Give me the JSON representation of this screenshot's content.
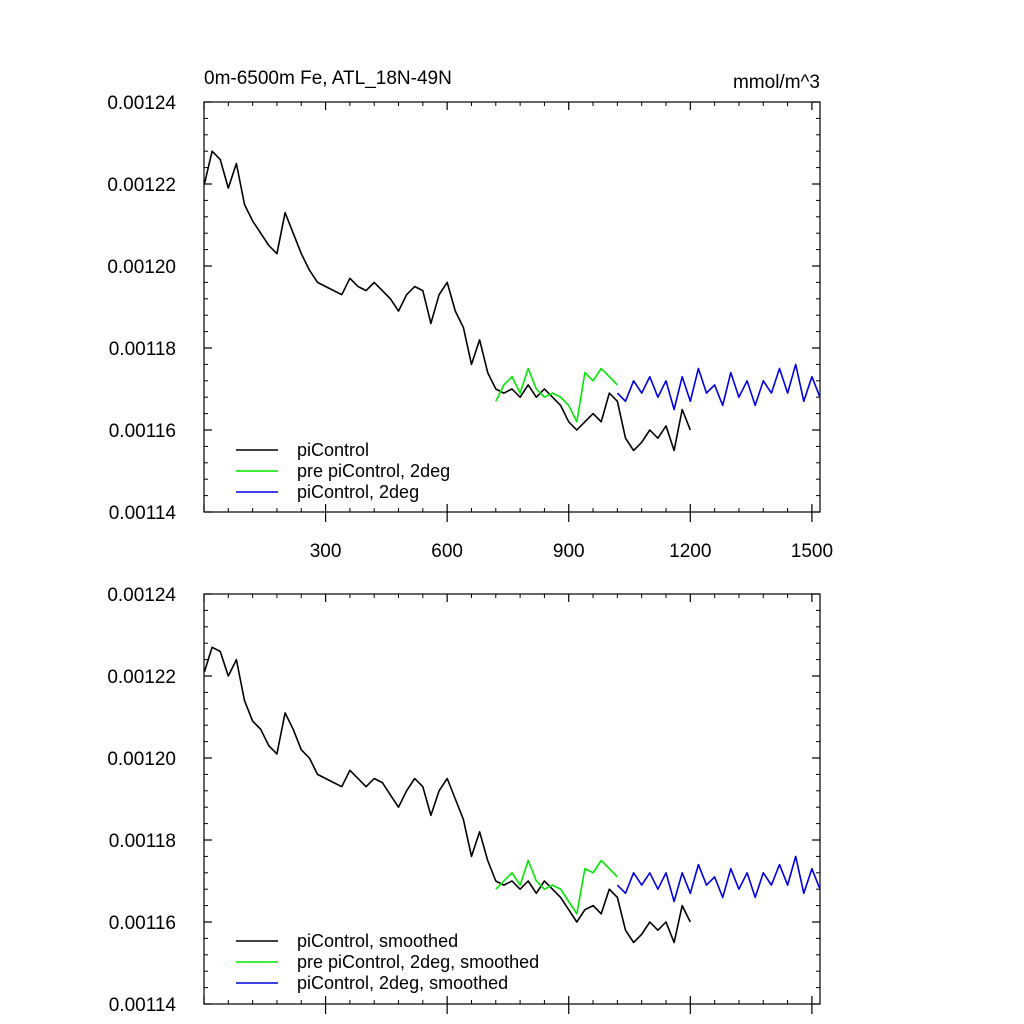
{
  "chart_data": [
    {
      "type": "line",
      "title": "0m-6500m Fe, ATL_18N-49N",
      "units": "mmol/m^3",
      "xlabel": "",
      "ylabel": "",
      "xlim": [
        0,
        1520
      ],
      "ylim": [
        0.00114,
        0.00124
      ],
      "xticks": [
        300,
        600,
        900,
        1200,
        1500
      ],
      "xticklabels": [
        "300",
        "600",
        "900",
        "1200",
        "1500"
      ],
      "yticks": [
        0.00114,
        0.00116,
        0.00118,
        0.0012,
        0.00122,
        0.00124
      ],
      "yticklabels": [
        "0.00114",
        "0.00116",
        "0.00118",
        "0.00120",
        "0.00122",
        "0.00124"
      ],
      "legend_position": "bottom-left",
      "grid": false,
      "series": [
        {
          "name": "piControl",
          "color": "#000000",
          "x": [
            1,
            20,
            40,
            60,
            80,
            100,
            120,
            140,
            160,
            180,
            200,
            220,
            240,
            260,
            280,
            300,
            320,
            340,
            360,
            380,
            400,
            420,
            440,
            460,
            480,
            500,
            520,
            540,
            560,
            580,
            600,
            620,
            640,
            660,
            680,
            700,
            720,
            740,
            760,
            780,
            800,
            820,
            840,
            860,
            880,
            900,
            920,
            940,
            960,
            980,
            1000,
            1020,
            1040,
            1060,
            1080,
            1100,
            1120,
            1140,
            1160,
            1180,
            1200
          ],
          "y": [
            0.00122,
            0.001228,
            0.001226,
            0.001219,
            0.001225,
            0.001215,
            0.001211,
            0.001208,
            0.001205,
            0.001203,
            0.001213,
            0.001208,
            0.001203,
            0.001199,
            0.001196,
            0.001195,
            0.001194,
            0.001193,
            0.001197,
            0.001195,
            0.001194,
            0.001196,
            0.001194,
            0.001192,
            0.001189,
            0.001193,
            0.001195,
            0.001194,
            0.001186,
            0.001193,
            0.001196,
            0.001189,
            0.001185,
            0.001176,
            0.001182,
            0.001174,
            0.00117,
            0.001169,
            0.00117,
            0.001168,
            0.001171,
            0.001168,
            0.00117,
            0.001168,
            0.001166,
            0.001162,
            0.00116,
            0.001162,
            0.001164,
            0.001162,
            0.001169,
            0.001167,
            0.001158,
            0.001155,
            0.001157,
            0.00116,
            0.001158,
            0.001161,
            0.001155,
            0.001165,
            0.00116
          ]
        },
        {
          "name": "pre piControl, 2deg",
          "color": "#00e800",
          "x": [
            720,
            740,
            760,
            780,
            800,
            820,
            840,
            860,
            880,
            900,
            920,
            940,
            960,
            980,
            1000,
            1020
          ],
          "y": [
            0.001167,
            0.001171,
            0.001173,
            0.001169,
            0.001175,
            0.00117,
            0.001168,
            0.001169,
            0.001168,
            0.001166,
            0.001162,
            0.001174,
            0.001172,
            0.001175,
            0.001173,
            0.001171
          ]
        },
        {
          "name": "piControl, 2deg",
          "color": "#0000e0",
          "x": [
            1020,
            1040,
            1060,
            1080,
            1100,
            1120,
            1140,
            1160,
            1180,
            1200,
            1220,
            1240,
            1260,
            1280,
            1300,
            1320,
            1340,
            1360,
            1380,
            1400,
            1420,
            1440,
            1460,
            1480,
            1500,
            1520
          ],
          "y": [
            0.001169,
            0.001167,
            0.001172,
            0.001169,
            0.001173,
            0.001168,
            0.001172,
            0.001165,
            0.001173,
            0.001167,
            0.001175,
            0.001169,
            0.001171,
            0.001166,
            0.001174,
            0.001168,
            0.001172,
            0.001166,
            0.001172,
            0.001169,
            0.001175,
            0.001169,
            0.001176,
            0.001167,
            0.001173,
            0.001168
          ]
        }
      ]
    },
    {
      "type": "line",
      "title": "",
      "xlabel": "",
      "ylabel": "",
      "xlim": [
        0,
        1520
      ],
      "ylim": [
        0.00114,
        0.00124
      ],
      "xticks": [
        300,
        600,
        900,
        1200,
        1500
      ],
      "xticklabels": [],
      "yticks": [
        0.00114,
        0.00116,
        0.00118,
        0.0012,
        0.00122,
        0.00124
      ],
      "yticklabels": [
        "0.00114",
        "0.00116",
        "0.00118",
        "0.00120",
        "0.00122",
        "0.00124"
      ],
      "legend_position": "bottom-left",
      "grid": false,
      "series": [
        {
          "name": "piControl, smoothed",
          "color": "#000000",
          "x": [
            1,
            20,
            40,
            60,
            80,
            100,
            120,
            140,
            160,
            180,
            200,
            220,
            240,
            260,
            280,
            300,
            320,
            340,
            360,
            380,
            400,
            420,
            440,
            460,
            480,
            500,
            520,
            540,
            560,
            580,
            600,
            620,
            640,
            660,
            680,
            700,
            720,
            740,
            760,
            780,
            800,
            820,
            840,
            860,
            880,
            900,
            920,
            940,
            960,
            980,
            1000,
            1020,
            1040,
            1060,
            1080,
            1100,
            1120,
            1140,
            1160,
            1180,
            1200
          ],
          "y": [
            0.001221,
            0.001227,
            0.001226,
            0.00122,
            0.001224,
            0.001214,
            0.001209,
            0.001207,
            0.001203,
            0.001201,
            0.001211,
            0.001207,
            0.001202,
            0.0012,
            0.001196,
            0.001195,
            0.001194,
            0.001193,
            0.001197,
            0.001195,
            0.001193,
            0.001195,
            0.001194,
            0.001191,
            0.001188,
            0.001192,
            0.001195,
            0.001193,
            0.001186,
            0.001192,
            0.001195,
            0.00119,
            0.001185,
            0.001176,
            0.001182,
            0.001175,
            0.00117,
            0.001169,
            0.00117,
            0.001168,
            0.00117,
            0.001167,
            0.00117,
            0.001168,
            0.001166,
            0.001163,
            0.00116,
            0.001163,
            0.001164,
            0.001162,
            0.001168,
            0.001166,
            0.001158,
            0.001155,
            0.001157,
            0.00116,
            0.001158,
            0.00116,
            0.001155,
            0.001164,
            0.00116
          ]
        },
        {
          "name": "pre piControl, 2deg, smoothed",
          "color": "#00e800",
          "x": [
            720,
            740,
            760,
            780,
            800,
            820,
            840,
            860,
            880,
            900,
            920,
            940,
            960,
            980,
            1000,
            1020
          ],
          "y": [
            0.001168,
            0.00117,
            0.001172,
            0.001169,
            0.001175,
            0.00117,
            0.001168,
            0.001169,
            0.001168,
            0.001165,
            0.001162,
            0.001173,
            0.001172,
            0.001175,
            0.001173,
            0.001171
          ]
        },
        {
          "name": "piControl, 2deg, smoothed",
          "color": "#0000e0",
          "x": [
            1020,
            1040,
            1060,
            1080,
            1100,
            1120,
            1140,
            1160,
            1180,
            1200,
            1220,
            1240,
            1260,
            1280,
            1300,
            1320,
            1340,
            1360,
            1380,
            1400,
            1420,
            1440,
            1460,
            1480,
            1500,
            1520
          ],
          "y": [
            0.001169,
            0.001167,
            0.001172,
            0.001169,
            0.001172,
            0.001168,
            0.001172,
            0.001165,
            0.001172,
            0.001167,
            0.001174,
            0.001169,
            0.001171,
            0.001166,
            0.001173,
            0.001168,
            0.001172,
            0.001166,
            0.001172,
            0.001169,
            0.001174,
            0.001169,
            0.001176,
            0.001167,
            0.001173,
            0.001168
          ]
        }
      ]
    }
  ]
}
